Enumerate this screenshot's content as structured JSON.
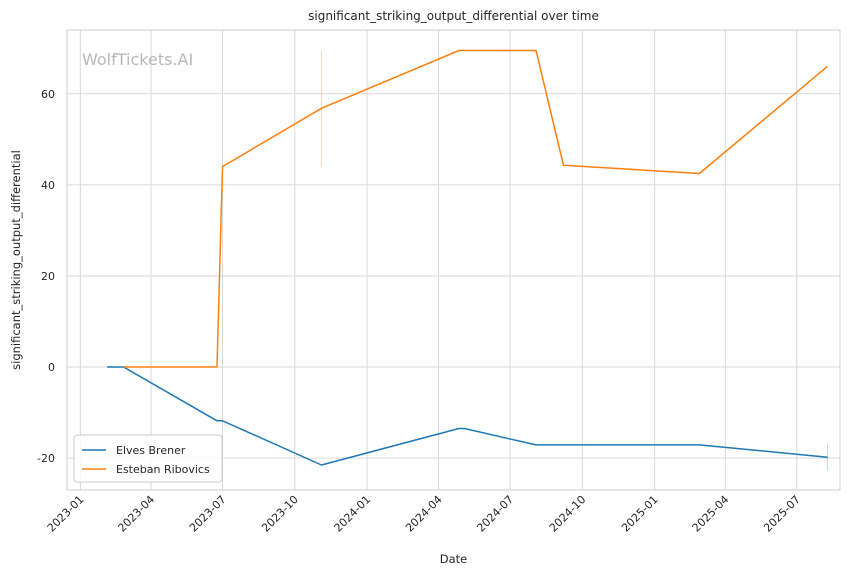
{
  "chart_data": {
    "type": "line",
    "title": "significant_striking_output_differential over time",
    "xlabel": "Date",
    "ylabel": "significant_striking_output_differential",
    "watermark": "WolfTickets.AI",
    "x_ticks": [
      "2023-01",
      "2023-04",
      "2023-07",
      "2023-10",
      "2024-01",
      "2024-04",
      "2024-07",
      "2024-10",
      "2025-01",
      "2025-04",
      "2025-07"
    ],
    "y_ticks": [
      -20,
      0,
      20,
      40,
      60
    ],
    "xlim": [
      "2022-12-15",
      "2025-08-25"
    ],
    "ylim": [
      -27,
      74
    ],
    "grid": true,
    "legend_position": "lower-left",
    "series": [
      {
        "name": "Elves Brener",
        "color": "#1f77b4",
        "points": [
          {
            "x": "2023-02-04",
            "y": 0
          },
          {
            "x": "2023-02-25",
            "y": 0
          },
          {
            "x": "2023-06-24",
            "y": -11.8
          },
          {
            "x": "2023-07-01",
            "y": -11.8
          },
          {
            "x": "2023-11-04",
            "y": -21.5
          },
          {
            "x": "2024-04-27",
            "y": -13.5
          },
          {
            "x": "2024-05-04",
            "y": -13.5
          },
          {
            "x": "2024-08-03",
            "y": -17.1
          },
          {
            "x": "2025-02-27",
            "y": -17.1
          },
          {
            "x": "2025-08-09",
            "y": -19.8
          }
        ]
      },
      {
        "name": "Esteban Ribovics",
        "color": "#ff7f0e",
        "points": [
          {
            "x": "2023-02-25",
            "y": 0
          },
          {
            "x": "2023-06-24",
            "y": 0
          },
          {
            "x": "2023-07-01",
            "y": 44
          },
          {
            "x": "2023-11-04",
            "y": 56.8
          },
          {
            "x": "2024-04-27",
            "y": 69.5
          },
          {
            "x": "2024-08-03",
            "y": 69.5
          },
          {
            "x": "2024-09-07",
            "y": 44.3
          },
          {
            "x": "2025-02-27",
            "y": 42.5
          },
          {
            "x": "2025-08-09",
            "y": 66
          }
        ]
      }
    ],
    "error_bars": [
      {
        "series": "Esteban Ribovics",
        "x": "2023-11-04",
        "y_low": 44,
        "y_high": 69.5
      },
      {
        "series": "Elves Brener",
        "x": "2025-08-09",
        "y_low": -22.7,
        "y_high": -17
      }
    ]
  }
}
